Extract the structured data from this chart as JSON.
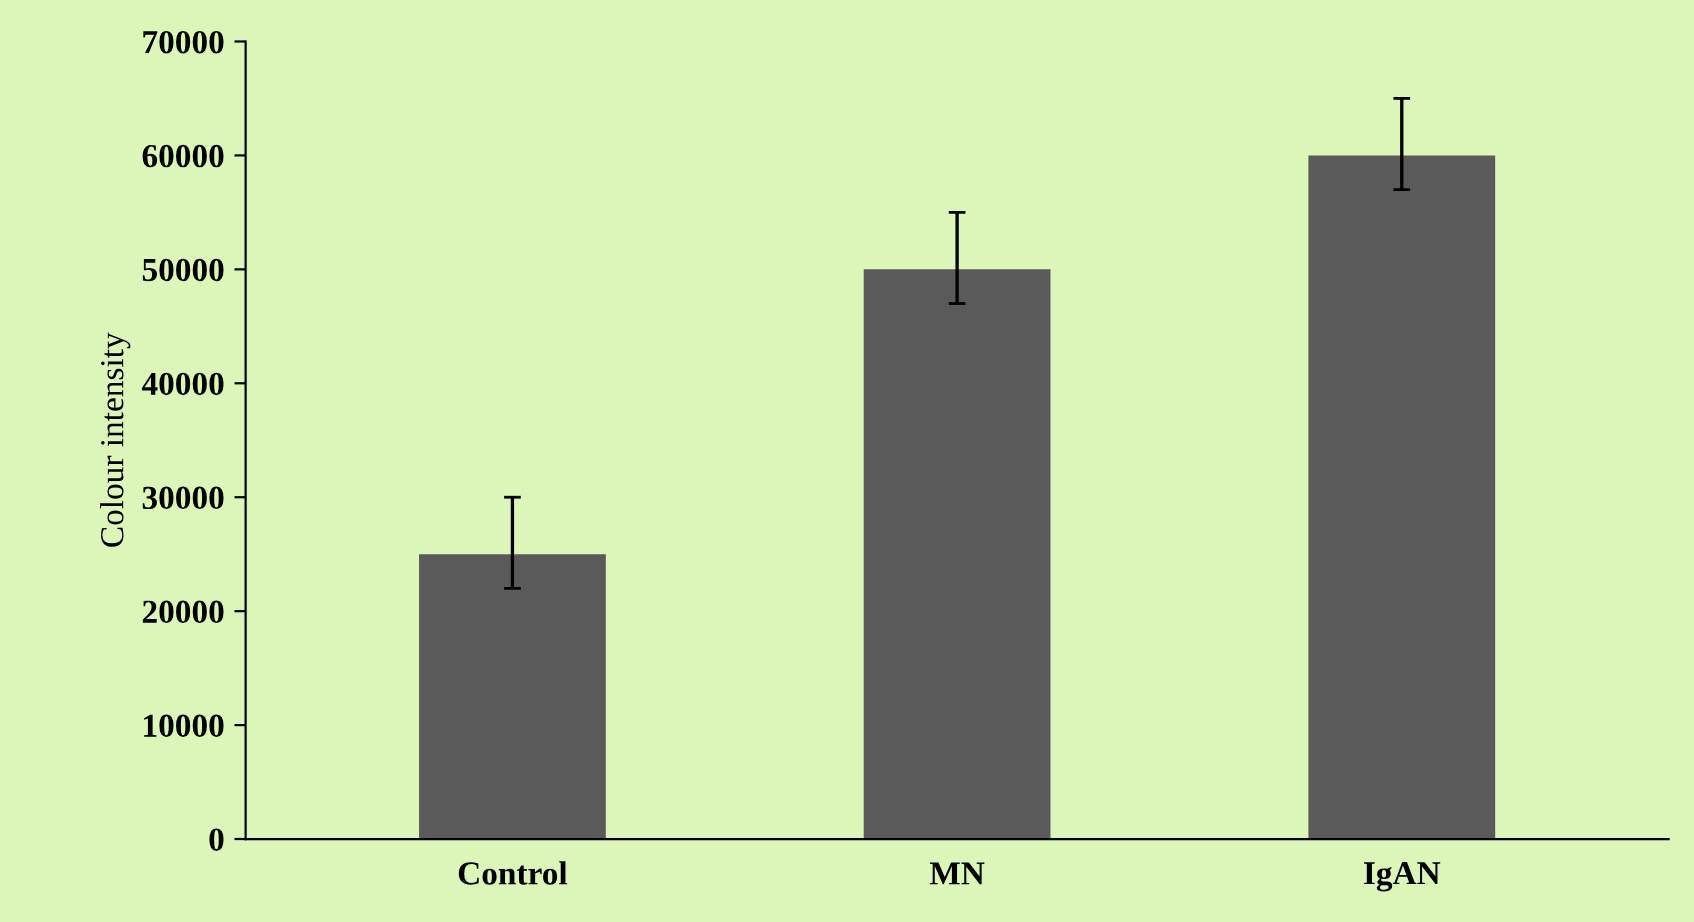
{
  "chart_data": {
    "type": "bar",
    "ylabel": "Colour intensity",
    "categories": [
      "Control",
      "MN",
      "IgAN"
    ],
    "values": [
      25000,
      50000,
      60000
    ],
    "errors": [
      [
        22000,
        30000
      ],
      [
        47000,
        55000
      ],
      [
        57000,
        65000
      ]
    ],
    "color": "#5a5a5a",
    "ylim": [
      0,
      70000
    ],
    "yticks": [
      0,
      10000,
      20000,
      30000,
      40000,
      50000,
      60000,
      70000
    ],
    "grid": false,
    "legend": false
  }
}
